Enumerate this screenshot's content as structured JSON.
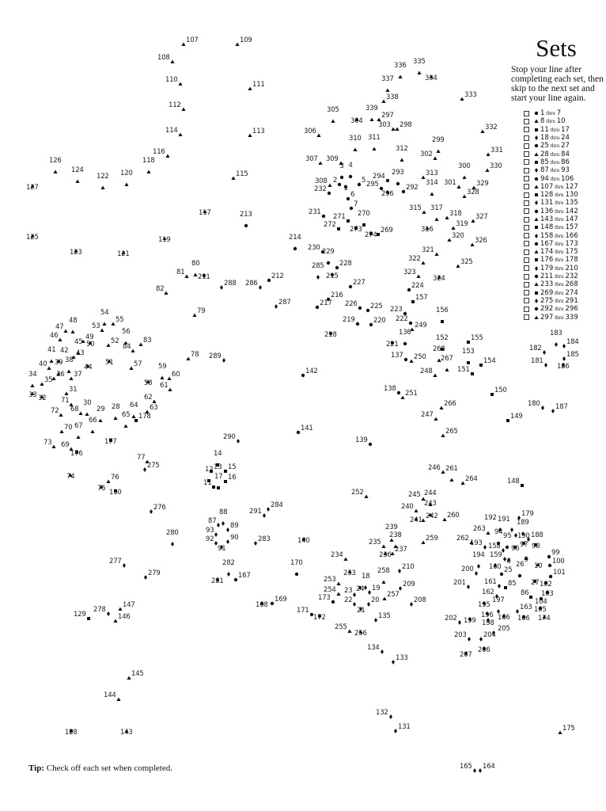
{
  "sets_panel": {
    "title": "Sets",
    "instructions": "Stop your line after completing each set, then skip to the next set and start your line again.",
    "thru_word": "thru",
    "sets": [
      {
        "first": "1",
        "last": "7",
        "marker": "circle"
      },
      {
        "first": "8",
        "last": "10",
        "marker": "triangle"
      },
      {
        "first": "11",
        "last": "17",
        "marker": "square"
      },
      {
        "first": "18",
        "last": "24",
        "marker": "diamond"
      },
      {
        "first": "25",
        "last": "27",
        "marker": "circle"
      },
      {
        "first": "28",
        "last": "84",
        "marker": "triangle"
      },
      {
        "first": "85",
        "last": "86",
        "marker": "square"
      },
      {
        "first": "87",
        "last": "93",
        "marker": "diamond"
      },
      {
        "first": "94",
        "last": "106",
        "marker": "circle"
      },
      {
        "first": "107",
        "last": "127",
        "marker": "triangle"
      },
      {
        "first": "128",
        "last": "130",
        "marker": "square"
      },
      {
        "first": "131",
        "last": "135",
        "marker": "diamond"
      },
      {
        "first": "136",
        "last": "142",
        "marker": "circle"
      },
      {
        "first": "143",
        "last": "147",
        "marker": "triangle"
      },
      {
        "first": "148",
        "last": "157",
        "marker": "square"
      },
      {
        "first": "158",
        "last": "166",
        "marker": "diamond"
      },
      {
        "first": "167",
        "last": "173",
        "marker": "circle"
      },
      {
        "first": "174",
        "last": "175",
        "marker": "triangle"
      },
      {
        "first": "176",
        "last": "178",
        "marker": "square"
      },
      {
        "first": "179",
        "last": "210",
        "marker": "diamond"
      },
      {
        "first": "211",
        "last": "232",
        "marker": "circle"
      },
      {
        "first": "233",
        "last": "268",
        "marker": "triangle"
      },
      {
        "first": "269",
        "last": "274",
        "marker": "square"
      },
      {
        "first": "275",
        "last": "291",
        "marker": "diamond"
      },
      {
        "first": "292",
        "last": "296",
        "marker": "circle"
      },
      {
        "first": "297",
        "last": "339",
        "marker": "triangle"
      }
    ]
  },
  "dots": {
    "first": 1,
    "last": 339
  },
  "tip": {
    "label": "Tip:",
    "text": "Check off each set when completed."
  }
}
